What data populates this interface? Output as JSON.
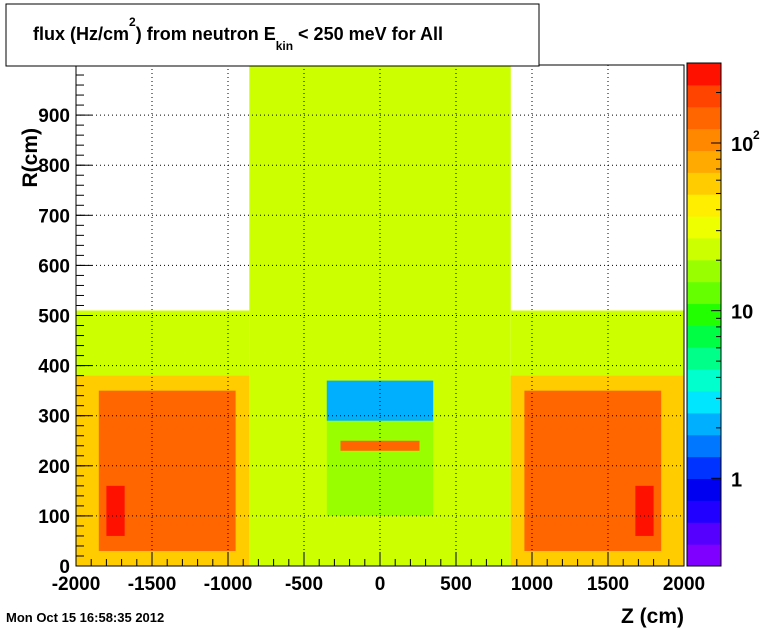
{
  "title": {
    "prefix": "flux (Hz/cm",
    "sup": "2",
    "mid": ") from neutron  E",
    "sub": "kin",
    "suffix": " < 250 meV for All"
  },
  "timestamp": "Mon Oct 15 16:58:35 2012",
  "colors": {
    "palette": [
      "#7f00ff",
      "#5500ff",
      "#2200ff",
      "#0000f0",
      "#0033ff",
      "#0077ff",
      "#00b0ff",
      "#00e6ff",
      "#00ffcc",
      "#00ff88",
      "#00ff44",
      "#22ff00",
      "#66ff00",
      "#99ff00",
      "#ccff00",
      "#eeff00",
      "#ffee00",
      "#ffcc00",
      "#ffaa00",
      "#ff8800",
      "#ff6600",
      "#ff4400",
      "#ff1100"
    ]
  },
  "chart_data": {
    "type": "heatmap",
    "xlabel": "Z (cm)",
    "ylabel": "R(cm)",
    "xlim": [
      -2000,
      2000
    ],
    "ylim": [
      0,
      1000
    ],
    "xticks": [
      "-2000",
      "-1500",
      "-1000",
      "-500",
      "0",
      "500",
      "1000",
      "1500",
      "2000"
    ],
    "yticks": [
      "0",
      "100",
      "200",
      "300",
      "400",
      "500",
      "600",
      "700",
      "800",
      "900"
    ],
    "ytick_values": [
      0,
      100,
      200,
      300,
      400,
      500,
      600,
      700,
      800,
      900
    ],
    "grid": true,
    "colorbar": {
      "scale": "log",
      "range": [
        0.3,
        300
      ],
      "labels": [
        "1",
        "10",
        "10"
      ],
      "label_sup": "2",
      "label_values": [
        1,
        10,
        100
      ]
    },
    "regions": [
      {
        "name": "central-column",
        "z": [
          -860,
          860
        ],
        "r": [
          0,
          1000
        ],
        "flux": 25
      },
      {
        "name": "side-left",
        "z": [
          -2000,
          -860
        ],
        "r": [
          0,
          510
        ],
        "flux": 25
      },
      {
        "name": "side-right",
        "z": [
          860,
          2000
        ],
        "r": [
          0,
          510
        ],
        "flux": 25
      },
      {
        "name": "yellow-left",
        "z": [
          -2000,
          -860
        ],
        "r": [
          0,
          380
        ],
        "flux": 60
      },
      {
        "name": "yellow-right",
        "z": [
          860,
          2000
        ],
        "r": [
          0,
          380
        ],
        "flux": 60
      },
      {
        "name": "orange-left",
        "z": [
          -1850,
          -950
        ],
        "r": [
          30,
          350
        ],
        "flux": 130
      },
      {
        "name": "orange-right",
        "z": [
          950,
          1850
        ],
        "r": [
          30,
          350
        ],
        "flux": 130
      },
      {
        "name": "hotspot-left",
        "z": [
          -1800,
          -1680
        ],
        "r": [
          60,
          160
        ],
        "flux": 230
      },
      {
        "name": "hotspot-right",
        "z": [
          1680,
          1800
        ],
        "r": [
          60,
          160
        ],
        "flux": 230
      },
      {
        "name": "inner-cavity",
        "z": [
          -350,
          350
        ],
        "r": [
          100,
          370
        ],
        "flux": 20
      },
      {
        "name": "inner-shell-top",
        "z": [
          -350,
          350
        ],
        "r": [
          290,
          370
        ],
        "flux": 2
      },
      {
        "name": "inner-band",
        "z": [
          -260,
          260
        ],
        "r": [
          230,
          250
        ],
        "flux": 150
      }
    ]
  }
}
